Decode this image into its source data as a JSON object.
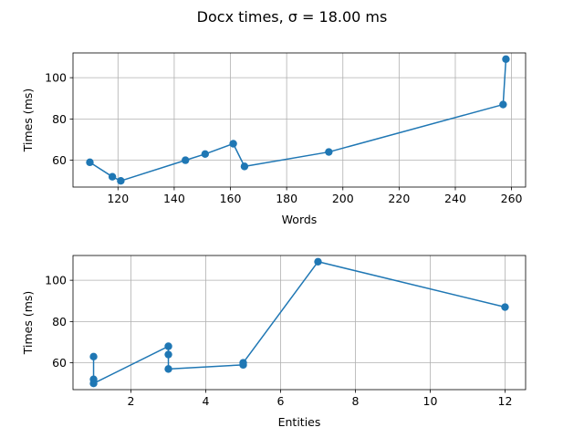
{
  "figure": {
    "title": "Docx times, σ = 18.00 ms"
  },
  "colors": {
    "series": "#1f77b4"
  },
  "chart_data": [
    {
      "type": "line",
      "markers": "circle",
      "xlabel": "Words",
      "ylabel": "Times (ms)",
      "xlim": [
        104,
        265
      ],
      "ylim": [
        47,
        112
      ],
      "xticks": [
        120,
        140,
        160,
        180,
        200,
        220,
        240,
        260
      ],
      "yticks": [
        60,
        80,
        100
      ],
      "grid": true,
      "series": [
        {
          "x": [
            110,
            118,
            121,
            144,
            151,
            161,
            165,
            195,
            257,
            258
          ],
          "y": [
            59,
            52,
            50,
            60,
            63,
            68,
            57,
            64,
            87,
            109
          ]
        }
      ]
    },
    {
      "type": "line",
      "markers": "circle",
      "xlabel": "Entities",
      "ylabel": "Times (ms)",
      "xlim": [
        0.45,
        12.55
      ],
      "ylim": [
        47,
        112
      ],
      "xticks": [
        2,
        4,
        6,
        8,
        10,
        12
      ],
      "yticks": [
        60,
        80,
        100
      ],
      "grid": true,
      "series": [
        {
          "x": [
            1,
            1,
            1,
            3,
            3,
            3,
            5,
            5,
            7,
            12
          ],
          "y": [
            63,
            52,
            50,
            68,
            64,
            57,
            59,
            60,
            109,
            87
          ]
        }
      ]
    }
  ]
}
